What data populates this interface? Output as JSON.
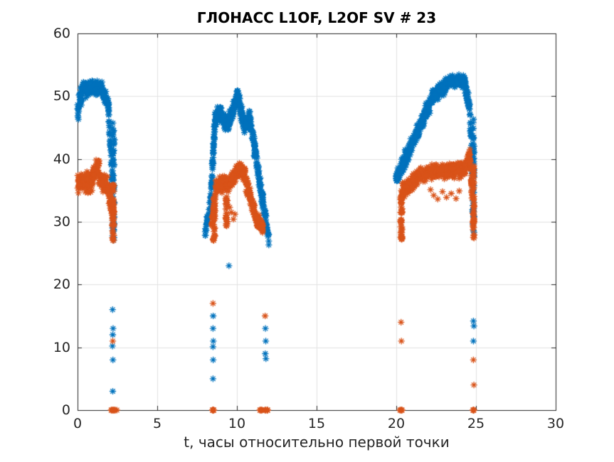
{
  "title": "ГЛОНАСС L1OF, L2OF SV # 23",
  "xlabel": "t, часы относительно первой точки",
  "colors": {
    "axis": "#252525",
    "grid": "#e2e2e2",
    "background": "#ffffff",
    "series_blue": "#0072BD",
    "series_orange": "#D95319"
  },
  "chart_data": {
    "type": "scatter",
    "marker": "asterisk-8-spoke",
    "grid": true,
    "legend": "none",
    "title": "ГЛОНАСС L1OF, L2OF SV # 23",
    "xlabel": "t, часы относительно первой точки",
    "xlim": [
      0,
      30
    ],
    "ylim": [
      0,
      60
    ],
    "xticks": [
      0,
      5,
      10,
      15,
      20,
      25,
      30
    ],
    "yticks": [
      0,
      10,
      20,
      30,
      40,
      50,
      60
    ],
    "series": [
      {
        "name": "L1OF",
        "color": "#0072BD",
        "segments": [
          [
            0.0,
            0.28,
            47.5,
            50.8,
            2.3,
            40
          ],
          [
            0.28,
            1.55,
            51.2,
            51.3,
            1.6,
            170
          ],
          [
            1.55,
            1.95,
            50.6,
            48.6,
            1.5,
            55
          ],
          [
            1.95,
            2.18,
            48.0,
            36.0,
            2.2,
            40
          ],
          [
            8.0,
            8.35,
            28.0,
            33.0,
            1.6,
            28
          ],
          [
            8.35,
            8.62,
            33.0,
            46.0,
            2.6,
            60
          ],
          [
            8.62,
            9.02,
            46.6,
            47.6,
            1.7,
            60
          ],
          [
            9.02,
            9.45,
            46.6,
            45.3,
            1.7,
            60
          ],
          [
            9.45,
            10.08,
            45.6,
            50.4,
            1.6,
            90
          ],
          [
            10.08,
            10.5,
            49.6,
            44.9,
            1.8,
            55
          ],
          [
            10.5,
            10.82,
            45.0,
            46.6,
            1.5,
            42
          ],
          [
            10.82,
            11.55,
            46.4,
            34.5,
            1.9,
            95
          ],
          [
            11.55,
            12.0,
            34.5,
            27.2,
            1.7,
            55
          ],
          [
            19.98,
            20.32,
            36.8,
            38.6,
            1.6,
            40
          ],
          [
            20.32,
            22.35,
            38.6,
            50.2,
            1.8,
            250
          ],
          [
            22.35,
            23.25,
            50.2,
            51.9,
            1.5,
            115
          ],
          [
            23.25,
            24.3,
            52.3,
            52.4,
            1.3,
            140
          ],
          [
            24.3,
            24.62,
            51.8,
            48.0,
            1.6,
            45
          ],
          [
            24.62,
            24.8,
            47.5,
            36.0,
            2.2,
            30
          ]
        ],
        "vclusters": [
          [
            2.25,
            0.12,
            27.0,
            46.0,
            65
          ],
          [
            24.84,
            0.1,
            27.5,
            47.0,
            60
          ]
        ],
        "zero_clusters": [],
        "points": [
          [
            2.2,
            16
          ],
          [
            2.23,
            13
          ],
          [
            2.21,
            12
          ],
          [
            2.19,
            10.2
          ],
          [
            2.22,
            8
          ],
          [
            2.21,
            3
          ],
          [
            9.5,
            23
          ],
          [
            8.51,
            15
          ],
          [
            8.5,
            13
          ],
          [
            8.52,
            11
          ],
          [
            8.5,
            10.1
          ],
          [
            8.51,
            8
          ],
          [
            8.5,
            5
          ],
          [
            11.79,
            13
          ],
          [
            11.81,
            11
          ],
          [
            11.78,
            9
          ],
          [
            11.82,
            8.2
          ],
          [
            12.0,
            26.3
          ],
          [
            24.84,
            14.2
          ],
          [
            24.87,
            13.4
          ],
          [
            24.84,
            11
          ]
        ]
      },
      {
        "name": "L2OF",
        "color": "#D95319",
        "segments": [
          [
            0.0,
            0.95,
            36.3,
            36.3,
            2.0,
            120
          ],
          [
            0.95,
            1.35,
            37.2,
            39.4,
            1.9,
            60
          ],
          [
            1.35,
            1.9,
            37.0,
            35.6,
            1.9,
            75
          ],
          [
            1.9,
            2.18,
            35.5,
            31.5,
            1.9,
            40
          ],
          [
            8.4,
            8.66,
            29.0,
            34.0,
            1.9,
            30
          ],
          [
            8.66,
            9.3,
            35.4,
            36.2,
            1.7,
            85
          ],
          [
            9.3,
            9.62,
            35.8,
            36.3,
            1.6,
            42
          ],
          [
            9.62,
            10.15,
            36.4,
            38.6,
            1.6,
            70
          ],
          [
            10.15,
            10.52,
            38.5,
            37.3,
            1.8,
            50
          ],
          [
            10.52,
            10.88,
            37.0,
            33.5,
            1.9,
            46
          ],
          [
            10.88,
            11.3,
            33.3,
            29.7,
            1.6,
            52
          ],
          [
            11.3,
            11.65,
            30.3,
            29.0,
            1.4,
            42
          ],
          [
            20.38,
            21.4,
            34.8,
            37.2,
            1.7,
            120
          ],
          [
            21.4,
            24.3,
            37.6,
            38.4,
            1.55,
            360
          ],
          [
            24.3,
            24.62,
            38.8,
            40.3,
            1.6,
            42
          ],
          [
            24.62,
            24.8,
            40.0,
            33.0,
            2.2,
            26
          ]
        ],
        "vclusters": [
          [
            2.24,
            0.12,
            27.0,
            36.0,
            60
          ],
          [
            8.57,
            0.14,
            27.0,
            34.0,
            42
          ],
          [
            9.35,
            0.12,
            29.0,
            34.0,
            26
          ],
          [
            20.32,
            0.11,
            27.0,
            35.0,
            52
          ],
          [
            24.84,
            0.1,
            27.0,
            39.0,
            52
          ]
        ],
        "zero_clusters": [
          [
            2.27,
            0.4,
            11
          ],
          [
            8.52,
            0.16,
            7
          ],
          [
            11.5,
            0.18,
            7
          ],
          [
            11.85,
            0.22,
            8
          ],
          [
            20.3,
            0.16,
            6
          ],
          [
            24.82,
            0.16,
            6
          ]
        ],
        "points": [
          [
            2.21,
            11
          ],
          [
            8.5,
            17
          ],
          [
            11.77,
            15
          ],
          [
            20.3,
            14
          ],
          [
            20.32,
            11
          ],
          [
            24.84,
            8
          ],
          [
            24.87,
            4
          ],
          [
            22.15,
            35.1
          ],
          [
            22.35,
            34.2
          ],
          [
            22.6,
            33.6
          ],
          [
            22.9,
            34.8
          ],
          [
            23.15,
            33.9
          ],
          [
            23.45,
            34.5
          ],
          [
            23.75,
            33.7
          ],
          [
            23.95,
            34.9
          ],
          [
            9.65,
            31.5
          ],
          [
            9.78,
            30.4
          ],
          [
            9.88,
            31.2
          ],
          [
            9.55,
            32.3
          ]
        ]
      }
    ]
  }
}
